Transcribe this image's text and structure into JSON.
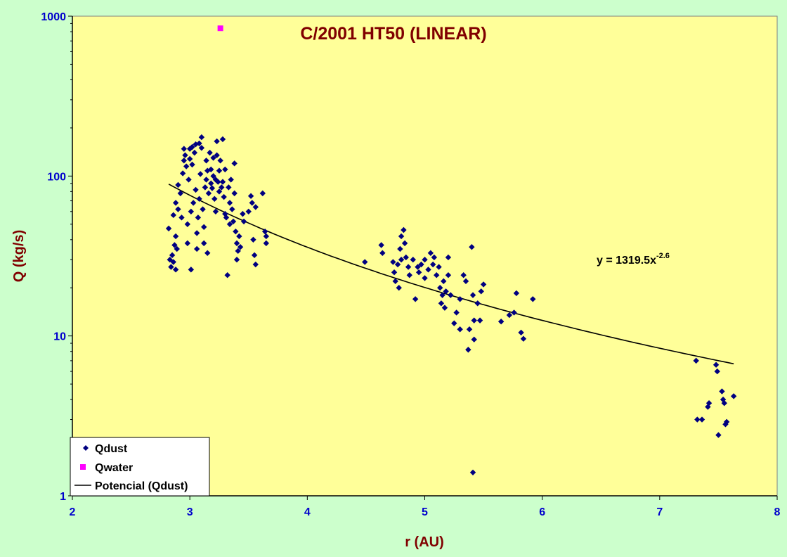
{
  "chart_data": {
    "type": "scatter",
    "title": "C/2001 HT50 (LINEAR)",
    "xlabel": "r (AU)",
    "ylabel": "Q (kg/s)",
    "xlim": [
      2,
      8
    ],
    "ylim": [
      1,
      1000
    ],
    "y_scale": "log",
    "x_ticks": [
      "2",
      "3",
      "4",
      "5",
      "6",
      "7",
      "8"
    ],
    "y_ticks": [
      "1",
      "10",
      "100",
      "1000"
    ],
    "grid": false,
    "legend_position": "bottom-left",
    "colors": {
      "plot_background": "#ffff99",
      "page_background": "#ccffcc",
      "qdust": "#000080",
      "qwater": "#ff00ff",
      "trendline": "#000000",
      "title": "#800000",
      "ticks": "#0000cc"
    },
    "series": [
      {
        "name": "Qdust",
        "marker": "diamond",
        "points": [
          [
            2.82,
            47
          ],
          [
            2.83,
            30
          ],
          [
            2.84,
            27
          ],
          [
            2.85,
            32
          ],
          [
            2.86,
            29
          ],
          [
            2.87,
            37
          ],
          [
            2.88,
            42
          ],
          [
            2.88,
            26
          ],
          [
            2.89,
            35
          ],
          [
            2.86,
            57
          ],
          [
            2.88,
            68
          ],
          [
            2.9,
            62
          ],
          [
            2.9,
            88
          ],
          [
            2.92,
            78
          ],
          [
            2.93,
            55
          ],
          [
            2.94,
            104
          ],
          [
            2.95,
            125
          ],
          [
            2.95,
            148
          ],
          [
            2.96,
            135
          ],
          [
            2.97,
            115
          ],
          [
            2.98,
            50
          ],
          [
            2.98,
            38
          ],
          [
            2.99,
            95
          ],
          [
            3.0,
            148
          ],
          [
            3.0,
            128
          ],
          [
            3.01,
            60
          ],
          [
            3.01,
            26
          ],
          [
            3.02,
            152
          ],
          [
            3.02,
            118
          ],
          [
            3.03,
            68
          ],
          [
            3.04,
            140
          ],
          [
            3.05,
            158
          ],
          [
            3.05,
            82
          ],
          [
            3.06,
            35
          ],
          [
            3.06,
            44
          ],
          [
            3.07,
            55
          ],
          [
            3.08,
            160
          ],
          [
            3.08,
            72
          ],
          [
            3.09,
            103
          ],
          [
            3.1,
            175
          ],
          [
            3.1,
            150
          ],
          [
            3.11,
            62
          ],
          [
            3.12,
            38
          ],
          [
            3.12,
            48
          ],
          [
            3.13,
            85
          ],
          [
            3.14,
            125
          ],
          [
            3.14,
            95
          ],
          [
            3.15,
            108
          ],
          [
            3.15,
            33
          ],
          [
            3.16,
            78
          ],
          [
            3.17,
            140
          ],
          [
            3.18,
            90
          ],
          [
            3.18,
            110
          ],
          [
            3.19,
            84
          ],
          [
            3.2,
            100
          ],
          [
            3.2,
            130
          ],
          [
            3.21,
            72
          ],
          [
            3.22,
            60
          ],
          [
            3.22,
            95
          ],
          [
            3.23,
            135
          ],
          [
            3.23,
            165
          ],
          [
            3.24,
            92
          ],
          [
            3.25,
            80
          ],
          [
            3.25,
            108
          ],
          [
            3.26,
            125
          ],
          [
            3.27,
            85
          ],
          [
            3.28,
            170
          ],
          [
            3.28,
            92
          ],
          [
            3.29,
            74
          ],
          [
            3.3,
            110
          ],
          [
            3.3,
            58
          ],
          [
            3.31,
            55
          ],
          [
            3.32,
            24
          ],
          [
            3.33,
            85
          ],
          [
            3.34,
            68
          ],
          [
            3.34,
            50
          ],
          [
            3.35,
            95
          ],
          [
            3.36,
            62
          ],
          [
            3.37,
            52
          ],
          [
            3.38,
            120
          ],
          [
            3.38,
            78
          ],
          [
            3.39,
            45
          ],
          [
            3.4,
            38
          ],
          [
            3.4,
            30
          ],
          [
            3.41,
            34
          ],
          [
            3.42,
            42
          ],
          [
            3.43,
            36
          ],
          [
            3.45,
            58
          ],
          [
            3.46,
            52
          ],
          [
            3.5,
            60
          ],
          [
            3.52,
            75
          ],
          [
            3.53,
            68
          ],
          [
            3.54,
            40
          ],
          [
            3.55,
            32
          ],
          [
            3.56,
            28
          ],
          [
            3.56,
            64
          ],
          [
            3.62,
            78
          ],
          [
            3.64,
            45
          ],
          [
            3.65,
            42
          ],
          [
            3.65,
            38
          ]
        ]
      },
      {
        "name": "Qdust",
        "marker": "diamond",
        "points": [
          [
            4.49,
            29
          ],
          [
            4.63,
            37
          ],
          [
            4.64,
            33
          ],
          [
            4.73,
            29
          ],
          [
            4.74,
            25
          ],
          [
            4.75,
            22
          ],
          [
            4.77,
            28
          ],
          [
            4.78,
            20
          ],
          [
            4.79,
            35
          ],
          [
            4.8,
            30
          ],
          [
            4.8,
            42
          ],
          [
            4.82,
            46
          ],
          [
            4.83,
            38
          ],
          [
            4.84,
            31
          ],
          [
            4.86,
            27
          ],
          [
            4.87,
            24
          ],
          [
            4.9,
            30
          ],
          [
            4.92,
            17
          ],
          [
            4.94,
            27
          ],
          [
            4.95,
            25
          ],
          [
            4.97,
            28
          ],
          [
            5.0,
            23
          ],
          [
            5.0,
            30
          ],
          [
            5.03,
            26
          ],
          [
            5.05,
            33
          ],
          [
            5.07,
            28
          ],
          [
            5.08,
            31
          ],
          [
            5.1,
            24
          ],
          [
            5.12,
            27
          ],
          [
            5.13,
            20
          ],
          [
            5.14,
            16
          ],
          [
            5.15,
            18
          ],
          [
            5.16,
            22
          ],
          [
            5.17,
            15
          ],
          [
            5.18,
            19
          ],
          [
            5.2,
            31
          ],
          [
            5.2,
            24
          ],
          [
            5.22,
            18
          ],
          [
            5.25,
            12
          ],
          [
            5.27,
            14
          ],
          [
            5.3,
            11
          ],
          [
            5.3,
            17
          ],
          [
            5.33,
            24
          ],
          [
            5.35,
            22
          ],
          [
            5.37,
            8.2
          ],
          [
            5.38,
            11
          ],
          [
            5.4,
            36
          ],
          [
            5.41,
            18
          ],
          [
            5.42,
            9.5
          ],
          [
            5.42,
            12.5
          ],
          [
            5.45,
            16
          ],
          [
            5.47,
            12.5
          ],
          [
            5.48,
            19
          ],
          [
            5.5,
            21
          ],
          [
            5.65,
            12.3
          ],
          [
            5.72,
            13.5
          ],
          [
            5.76,
            14
          ],
          [
            5.78,
            18.5
          ],
          [
            5.82,
            10.5
          ],
          [
            5.84,
            9.6
          ],
          [
            5.92,
            17
          ],
          [
            5.41,
            1.4
          ]
        ]
      },
      {
        "name": "Qdust",
        "marker": "diamond",
        "points": [
          [
            7.31,
            7
          ],
          [
            7.32,
            3.0
          ],
          [
            7.36,
            3.0
          ],
          [
            7.41,
            3.6
          ],
          [
            7.42,
            3.8
          ],
          [
            7.48,
            6.6
          ],
          [
            7.49,
            6.0
          ],
          [
            7.5,
            2.4
          ],
          [
            7.53,
            4.5
          ],
          [
            7.54,
            4.0
          ],
          [
            7.55,
            3.8
          ],
          [
            7.56,
            2.8
          ],
          [
            7.57,
            2.9
          ],
          [
            7.63,
            4.2
          ]
        ]
      },
      {
        "name": "Qwater",
        "marker": "square",
        "points": [
          [
            3.26,
            840
          ]
        ]
      }
    ],
    "trendline": {
      "name": "Potencial (Qdust)",
      "type": "power",
      "a": 1319.5,
      "b": -2.6,
      "x_range": [
        2.82,
        7.63
      ],
      "equation_base": "y = 1319.5x",
      "equation_exp": "-2.6"
    }
  }
}
